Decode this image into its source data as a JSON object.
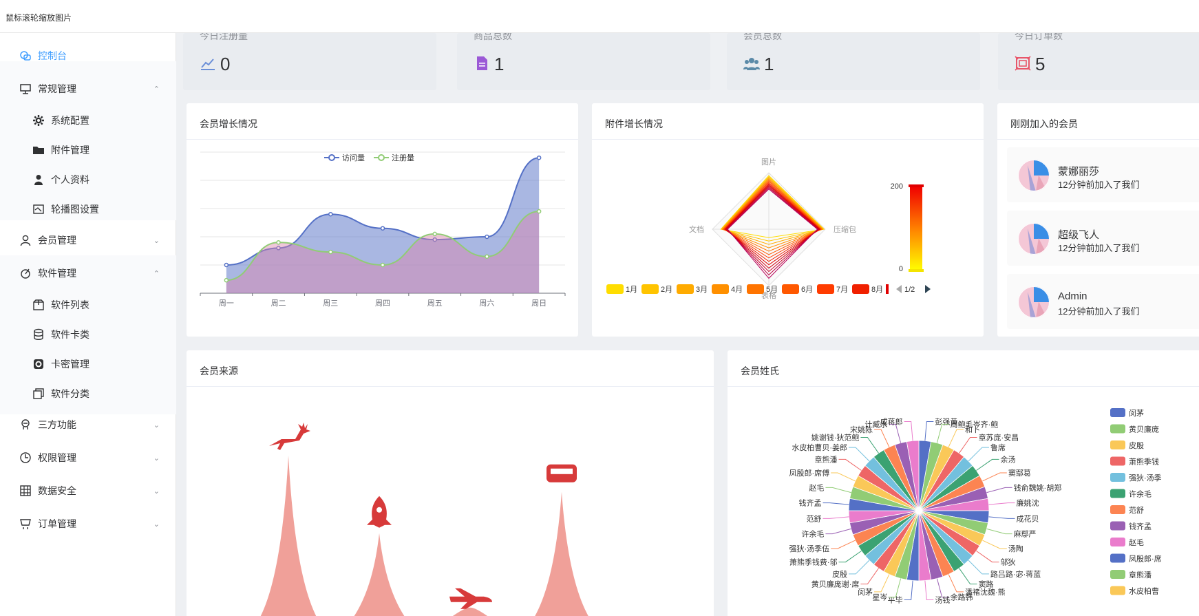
{
  "topbar": {
    "tooltip": "鼠标滚轮缩放图片"
  },
  "sidebar": {
    "items": [
      {
        "label": "控制台",
        "icon": "console-icon",
        "active": true
      },
      {
        "label": "常规管理",
        "icon": "presentation-icon",
        "arrow": "⌃"
      },
      {
        "label": "系统配置",
        "icon": "gear-icon"
      },
      {
        "label": "附件管理",
        "icon": "folder-icon"
      },
      {
        "label": "个人资料",
        "icon": "user-icon"
      },
      {
        "label": "轮播图设置",
        "icon": "image-icon"
      },
      {
        "label": "会员管理",
        "icon": "person-outline-icon",
        "arrow": "⌄"
      },
      {
        "label": "软件管理",
        "icon": "software-icon",
        "arrow": "⌃"
      },
      {
        "label": "软件列表",
        "icon": "box-icon"
      },
      {
        "label": "软件卡类",
        "icon": "database-icon"
      },
      {
        "label": "卡密管理",
        "icon": "key-card-icon"
      },
      {
        "label": "软件分类",
        "icon": "copy-icon"
      },
      {
        "label": "三方功能",
        "icon": "plug-icon",
        "arrow": "⌄"
      },
      {
        "label": "权限管理",
        "icon": "clock-icon",
        "arrow": "⌄"
      },
      {
        "label": "数据安全",
        "icon": "grid-icon",
        "arrow": "⌄"
      },
      {
        "label": "订单管理",
        "icon": "cart-icon",
        "arrow": "⌄"
      }
    ]
  },
  "stats": [
    {
      "title": "今日注册量",
      "value": "0",
      "icon": "trend-icon",
      "color": "#6a8fd8"
    },
    {
      "title": "商品总数",
      "value": "1",
      "icon": "document-icon",
      "color": "#9b59d6"
    },
    {
      "title": "会员总数",
      "value": "1",
      "icon": "users-icon",
      "color": "#5b8aa8"
    },
    {
      "title": "今日订单数",
      "value": "5",
      "icon": "order-icon",
      "color": "#e8566a"
    }
  ],
  "panels": {
    "growth": "会员增长情况",
    "attachment": "附件增长情况",
    "recent": "刚刚加入的会员",
    "source": "会员来源",
    "surname": "会员姓氏"
  },
  "recent_members": [
    {
      "name": "蒙娜丽莎",
      "joined": "12分钟前加入了我们"
    },
    {
      "name": "超级飞人",
      "joined": "12分钟前加入了我们"
    },
    {
      "name": "Admin",
      "joined": "12分钟前加入了我们"
    }
  ],
  "colors": {
    "accent": "#409eff",
    "visit": "#5470c6",
    "reg": "#91cc75"
  },
  "chart_data": [
    {
      "type": "area",
      "categories": [
        "周一",
        "周二",
        "周三",
        "周四",
        "周五",
        "周六",
        "周日"
      ],
      "ylim": [
        0,
        250
      ],
      "grid": true,
      "legend_position": "top-center",
      "series": [
        {
          "name": "访问量",
          "values": [
            50,
            80,
            140,
            115,
            95,
            100,
            240
          ]
        },
        {
          "name": "注册量",
          "values": [
            23,
            90,
            73,
            50,
            105,
            65,
            145
          ]
        }
      ]
    },
    {
      "type": "radar",
      "indicators": [
        "图片",
        "压缩包",
        "表格",
        "文档"
      ],
      "visual_map": {
        "min": 0,
        "max": 200
      },
      "legend": [
        "1月",
        "2月",
        "3月",
        "4月",
        "5月",
        "6月",
        "7月",
        "8月"
      ],
      "legend_page": "1/2"
    },
    {
      "type": "pictorial-bar",
      "icons": [
        "deer-icon",
        "rocket-icon",
        "plane-icon",
        "train-icon"
      ],
      "values": [
        100,
        53,
        8,
        78
      ]
    },
    {
      "type": "pie",
      "labels": [
        "彭强黄",
        "周鲍毛岑齐·鲍",
        "和卜",
        "章苏庞·安昌",
        "鲁席",
        "余汤",
        "窦鄢葛",
        "钱俞魏姚·胡郑",
        "廉姚沈",
        "成花贝",
        "麻鄢严",
        "汤陶",
        "邬狄",
        "路吕路·宓·蒋蓝",
        "窦路",
        "潘褚沈魏·熊",
        "余路韩",
        "汤钱",
        "平毕",
        "星岑",
        "闵茅",
        "黄贝廉庞谢·席",
        "皮殷",
        "萧熊季钱费·邬",
        "强狄·汤季伍",
        "许余毛",
        "范舒",
        "钱齐孟",
        "赵毛",
        "凤殷郎·席傅",
        "章熊潘",
        "水皮柏曹贝·姜郎",
        "姚谢钱·狄范鲍",
        "宋姚陈",
        "计臧水",
        "成蒋郎"
      ],
      "legend": [
        "闵茅",
        "黄贝廉庞",
        "皮殷",
        "萧熊季钱",
        "强狄·汤季",
        "许余毛",
        "范舒",
        "钱齐孟",
        "赵毛",
        "凤殷郎·席",
        "章熊潘",
        "水皮柏曹"
      ]
    }
  ]
}
